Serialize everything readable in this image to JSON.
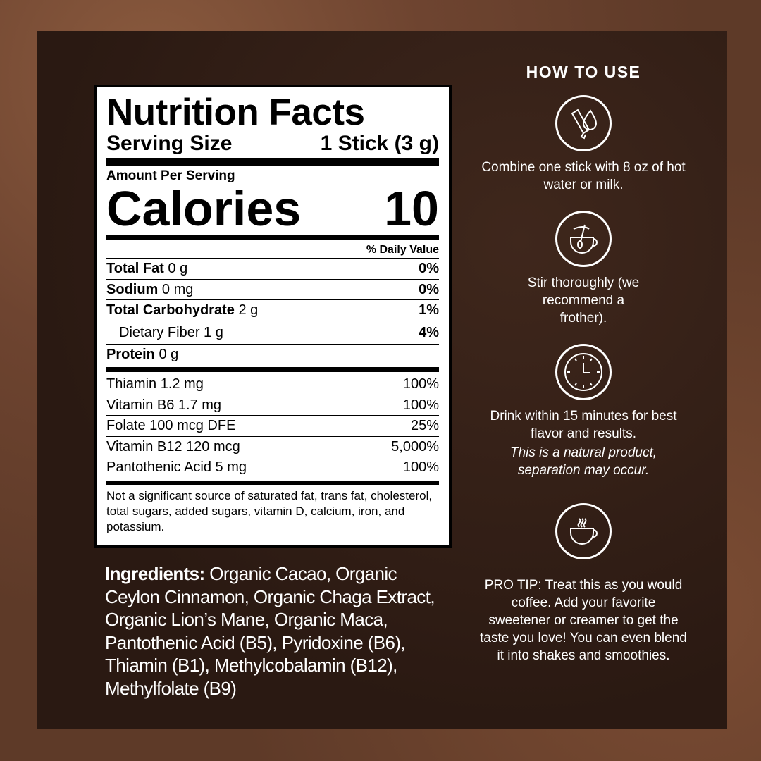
{
  "label": {
    "title": "Nutrition Facts",
    "serving_size_label": "Serving Size",
    "serving_size_value": "1 Stick (3 g)",
    "amount_per_serving": "Amount Per Serving",
    "calories_label": "Calories",
    "calories_value": "10",
    "daily_value_header": "% Daily Value",
    "nutrients": [
      {
        "name": "Total Fat",
        "amount": "0 g",
        "dv": "0%"
      },
      {
        "name": "Sodium",
        "amount": "0 mg",
        "dv": "0%"
      },
      {
        "name": "Total Carbohydrate",
        "amount": "2 g",
        "dv": "1%"
      },
      {
        "name": "Dietary Fiber",
        "amount": "1 g",
        "dv": "4%"
      },
      {
        "name": "Protein",
        "amount": "0 g",
        "dv": ""
      }
    ],
    "vitamins": [
      {
        "name": "Thiamin 1.2 mg",
        "dv": "100%"
      },
      {
        "name": "Vitamin B6 1.7 mg",
        "dv": "100%"
      },
      {
        "name": "Folate 100 mcg DFE",
        "dv": "25%"
      },
      {
        "name": "Vitamin B12 120 mcg",
        "dv": "5,000%"
      },
      {
        "name": "Pantothenic Acid 5 mg",
        "dv": "100%"
      }
    ],
    "footnote": "Not a significant source of saturated fat, trans fat, cholesterol, total sugars, added sugars, vitamin D, calcium, iron, and potassium."
  },
  "ingredients": {
    "label": "Ingredients:",
    "text": " Organic Cacao, Organic Ceylon Cinnamon, Organic Chaga Extract, Organic Lion’s Mane, Organic Maca, Pantothenic Acid (B5), Pyridoxine (B6), Thiamin (B1), Methylcobalamin (B12), Methylfolate (B9)"
  },
  "how_to_use": {
    "title": "HOW TO USE",
    "steps": [
      {
        "icon": "stick-and-drop-icon",
        "text": "Combine one stick with 8 oz of hot water or milk.",
        "note": ""
      },
      {
        "icon": "cup-with-spoon-icon",
        "text": "Stir thoroughly (we recommend a frother).",
        "note": ""
      },
      {
        "icon": "clock-icon",
        "text": "Drink within 15 minutes for best flavor and results.",
        "note": "This is a natural product, separation may occur."
      },
      {
        "icon": "hot-cup-icon",
        "text": "PRO TIP: Treat this as you would coffee. Add your favorite sweetener or creamer to get the taste you love! You can even blend it into shakes and smoothies.",
        "note": ""
      }
    ]
  }
}
